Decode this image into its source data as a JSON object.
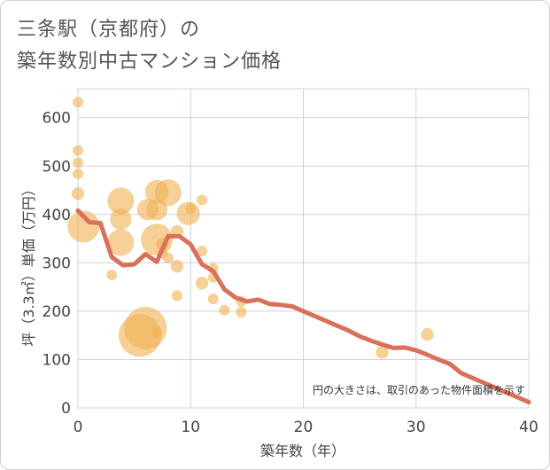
{
  "chart_data": {
    "type": "scatter",
    "title_line1": "三条駅（京都府）の",
    "title_line2": "築年数別中古マンション価格",
    "xlabel": "築年数（年）",
    "ylabel": "坪（3.3㎡）単価（万円）",
    "note": "円の大きさは、取引のあった物件面積を示す",
    "xlim": [
      0,
      40
    ],
    "ylim": [
      0,
      660
    ],
    "x_ticks": [
      "0",
      "10",
      "20",
      "30",
      "40"
    ],
    "y_ticks": [
      "0",
      "100",
      "200",
      "300",
      "400",
      "500",
      "600"
    ],
    "grid": true,
    "colors": {
      "bubble": "#f0b050",
      "line": "#d9715a",
      "grid": "#c8d4e0"
    },
    "bubbles": [
      {
        "x": 0,
        "y": 632,
        "s": 1
      },
      {
        "x": 0,
        "y": 532,
        "s": 1
      },
      {
        "x": 0,
        "y": 507,
        "s": 1
      },
      {
        "x": 0,
        "y": 484,
        "s": 1
      },
      {
        "x": 0,
        "y": 443,
        "s": 1.2
      },
      {
        "x": 0.5,
        "y": 375,
        "s": 3
      },
      {
        "x": 3,
        "y": 275,
        "s": 1
      },
      {
        "x": 3.8,
        "y": 428,
        "s": 2.5
      },
      {
        "x": 3.8,
        "y": 390,
        "s": 2
      },
      {
        "x": 3.8,
        "y": 342,
        "s": 2.5
      },
      {
        "x": 5.5,
        "y": 150,
        "s": 4
      },
      {
        "x": 6,
        "y": 165,
        "s": 4
      },
      {
        "x": 6.2,
        "y": 410,
        "s": 2
      },
      {
        "x": 7,
        "y": 447,
        "s": 2.2
      },
      {
        "x": 7,
        "y": 410,
        "s": 2
      },
      {
        "x": 7,
        "y": 348,
        "s": 3
      },
      {
        "x": 7,
        "y": 157,
        "s": 1
      },
      {
        "x": 7.5,
        "y": 338,
        "s": 1.2
      },
      {
        "x": 7.5,
        "y": 320,
        "s": 1
      },
      {
        "x": 8,
        "y": 310,
        "s": 1
      },
      {
        "x": 8,
        "y": 445,
        "s": 2.5
      },
      {
        "x": 8.8,
        "y": 365,
        "s": 1.2
      },
      {
        "x": 8.8,
        "y": 293,
        "s": 1.2
      },
      {
        "x": 8.8,
        "y": 232,
        "s": 1
      },
      {
        "x": 9.8,
        "y": 402,
        "s": 2.2
      },
      {
        "x": 10,
        "y": 412,
        "s": 1
      },
      {
        "x": 11,
        "y": 430,
        "s": 1
      },
      {
        "x": 11,
        "y": 324,
        "s": 1
      },
      {
        "x": 11,
        "y": 258,
        "s": 1.2
      },
      {
        "x": 12,
        "y": 288,
        "s": 1
      },
      {
        "x": 12,
        "y": 270,
        "s": 1
      },
      {
        "x": 12,
        "y": 225,
        "s": 1
      },
      {
        "x": 13,
        "y": 202,
        "s": 1
      },
      {
        "x": 14.5,
        "y": 220,
        "s": 1
      },
      {
        "x": 14.5,
        "y": 198,
        "s": 1
      },
      {
        "x": 27,
        "y": 115,
        "s": 1.2
      },
      {
        "x": 31,
        "y": 152,
        "s": 1.2
      }
    ],
    "trend": {
      "name": "",
      "x": [
        0,
        1,
        2,
        3,
        4,
        5,
        6,
        7,
        8,
        9,
        10,
        11,
        12,
        13,
        14,
        15,
        16,
        17,
        18,
        19,
        20,
        21,
        22,
        23,
        24,
        25,
        26,
        27,
        28,
        29,
        30,
        31,
        32,
        33,
        34,
        35,
        36,
        37,
        38,
        39,
        40
      ],
      "y": [
        408,
        384,
        382,
        312,
        295,
        297,
        318,
        302,
        355,
        355,
        338,
        297,
        283,
        245,
        228,
        220,
        224,
        215,
        213,
        210,
        200,
        190,
        180,
        170,
        160,
        148,
        139,
        131,
        124,
        125,
        119,
        110,
        100,
        91,
        72,
        62,
        52,
        42,
        32,
        22,
        12
      ]
    }
  }
}
